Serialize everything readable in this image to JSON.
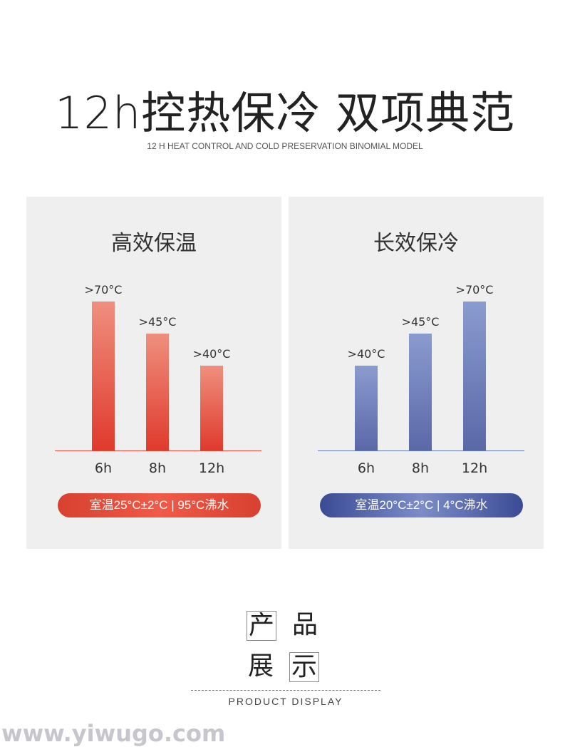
{
  "header": {
    "title": "12h控热保冷 双项典范",
    "subtitle": "12 H HEAT CONTROL AND COLD PRESERVATION BINOMIAL MODEL"
  },
  "chart_data": [
    {
      "type": "bar",
      "title": "高效保温",
      "categories": [
        "6h",
        "8h",
        "12h"
      ],
      "value_labels": [
        ">70°C",
        ">45°C",
        ">40°C"
      ],
      "values": [
        70,
        45,
        40
      ],
      "bar_level": [
        1.0,
        0.785,
        0.57
      ],
      "color_top": "#ef8f7e",
      "color_bottom": "#e03a2c",
      "axis_color": "#e04a3a",
      "note": "室温25°C±2°C | 95°C沸水",
      "note_color": "#d8402f"
    },
    {
      "type": "bar",
      "title": "长效保冷",
      "categories": [
        "6h",
        "8h",
        "12h"
      ],
      "value_labels": [
        ">40°C",
        ">45°C",
        ">70°C"
      ],
      "values": [
        40,
        45,
        70
      ],
      "bar_level": [
        0.57,
        0.785,
        1.0
      ],
      "color_top": "#8a9bcf",
      "color_bottom": "#5a68a8",
      "axis_color": "#6677b5",
      "note": "室温20°C±2°C | 4°C沸水",
      "note_color": "#3a4b94"
    }
  ],
  "product": {
    "chars": [
      "产",
      "品",
      "展",
      "示"
    ],
    "label": "PRODUCT DISPLAY"
  },
  "watermark": "www.yiwugo.com"
}
